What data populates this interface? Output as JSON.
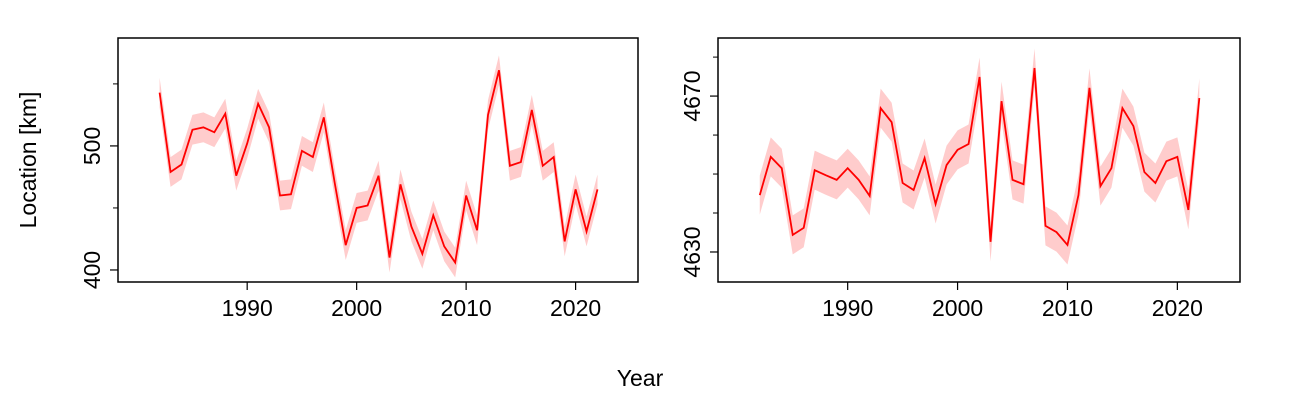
{
  "chart_data": [
    {
      "type": "line",
      "ylabel": "Location [km]",
      "xlabel": "Year",
      "x": [
        1982,
        1983,
        1984,
        1985,
        1986,
        1987,
        1988,
        1989,
        1990,
        1991,
        1992,
        1993,
        1994,
        1995,
        1996,
        1997,
        1998,
        1999,
        2000,
        2001,
        2002,
        2003,
        2004,
        2005,
        2006,
        2007,
        2008,
        2009,
        2010,
        2011,
        2012,
        2013,
        2014,
        2015,
        2016,
        2017,
        2018,
        2019,
        2020,
        2021,
        2022
      ],
      "values": [
        543,
        479,
        485,
        513,
        515,
        511,
        526,
        476,
        502,
        534,
        515,
        460,
        461,
        496,
        491,
        523,
        470,
        420,
        450,
        452,
        476,
        410,
        469,
        435,
        413,
        444,
        419,
        406,
        460,
        432,
        525,
        561,
        484,
        487,
        529,
        484,
        491,
        423,
        465,
        431,
        465
      ],
      "lower": [
        531,
        467,
        473,
        501,
        503,
        499,
        514,
        464,
        490,
        522,
        503,
        448,
        449,
        484,
        479,
        511,
        458,
        408,
        438,
        440,
        464,
        398,
        457,
        423,
        401,
        432,
        407,
        394,
        448,
        420,
        513,
        549,
        472,
        475,
        517,
        472,
        479,
        411,
        453,
        419,
        453
      ],
      "upper": [
        555,
        491,
        497,
        525,
        527,
        523,
        538,
        488,
        514,
        546,
        527,
        472,
        473,
        508,
        503,
        535,
        482,
        432,
        462,
        464,
        488,
        422,
        481,
        447,
        425,
        456,
        431,
        418,
        472,
        444,
        537,
        573,
        496,
        499,
        541,
        496,
        503,
        435,
        477,
        443,
        477
      ],
      "color": "#ff0000",
      "band_color": "#ffcccc",
      "xlim": [
        1978.2,
        2025.7
      ],
      "xticks": [
        1990,
        2000,
        2010,
        2020
      ],
      "ylim": [
        390.3,
        587
      ],
      "yticks": [
        400,
        500
      ],
      "yminor": [
        450,
        550
      ]
    },
    {
      "type": "line",
      "x": [
        1982,
        1983,
        1984,
        1985,
        1986,
        1987,
        1988,
        1989,
        1990,
        1991,
        1992,
        1993,
        1994,
        1995,
        1996,
        1997,
        1998,
        1999,
        2000,
        2001,
        2002,
        2003,
        2004,
        2005,
        2006,
        2007,
        2008,
        2009,
        2010,
        2011,
        2012,
        2013,
        2014,
        2015,
        2016,
        2017,
        2018,
        2019,
        2020,
        2021,
        2022
      ],
      "values": [
        4644.6,
        4654.4,
        4651.5,
        4634.4,
        4636.2,
        4651.0,
        4649.7,
        4648.5,
        4651.5,
        4648.5,
        4644.4,
        4666.9,
        4663.3,
        4647.7,
        4645.9,
        4654.1,
        4642.3,
        4652.3,
        4656.2,
        4657.7,
        4674.9,
        4632.6,
        4668.7,
        4648.5,
        4647.4,
        4677.2,
        4636.7,
        4635.1,
        4631.8,
        4644.6,
        4672.1,
        4646.9,
        4651.5,
        4666.9,
        4662.3,
        4650.5,
        4647.7,
        4653.3,
        4654.4,
        4640.8,
        4669.5
      ],
      "lower": [
        4639.6,
        4649.4,
        4646.5,
        4629.4,
        4631.2,
        4646.0,
        4644.7,
        4643.5,
        4646.5,
        4643.5,
        4639.4,
        4661.9,
        4658.3,
        4642.7,
        4640.9,
        4649.1,
        4637.3,
        4647.3,
        4651.2,
        4652.7,
        4669.9,
        4627.6,
        4663.7,
        4643.5,
        4642.4,
        4672.2,
        4631.7,
        4630.1,
        4626.8,
        4639.6,
        4667.1,
        4641.9,
        4646.5,
        4661.9,
        4657.3,
        4645.5,
        4642.7,
        4648.3,
        4649.4,
        4635.8,
        4664.5
      ],
      "upper": [
        4649.6,
        4659.4,
        4656.5,
        4639.4,
        4641.2,
        4656.0,
        4654.7,
        4653.5,
        4656.5,
        4653.5,
        4649.4,
        4671.9,
        4668.3,
        4652.7,
        4650.9,
        4659.1,
        4647.3,
        4657.3,
        4661.2,
        4662.7,
        4679.9,
        4637.6,
        4673.7,
        4653.5,
        4652.4,
        4682.2,
        4641.7,
        4640.1,
        4636.8,
        4649.6,
        4677.1,
        4651.9,
        4656.5,
        4671.9,
        4667.3,
        4655.5,
        4652.7,
        4658.3,
        4659.4,
        4645.8,
        4674.5
      ],
      "color": "#ff0000",
      "band_color": "#ffcccc",
      "xlim": [
        1978.2,
        2025.7
      ],
      "xticks": [
        1990,
        2000,
        2010,
        2020
      ],
      "ylim": [
        4622.3,
        4684.9
      ],
      "yticks": [
        4630,
        4670
      ],
      "yminor": [
        4640,
        4650,
        4660,
        4680
      ]
    }
  ]
}
